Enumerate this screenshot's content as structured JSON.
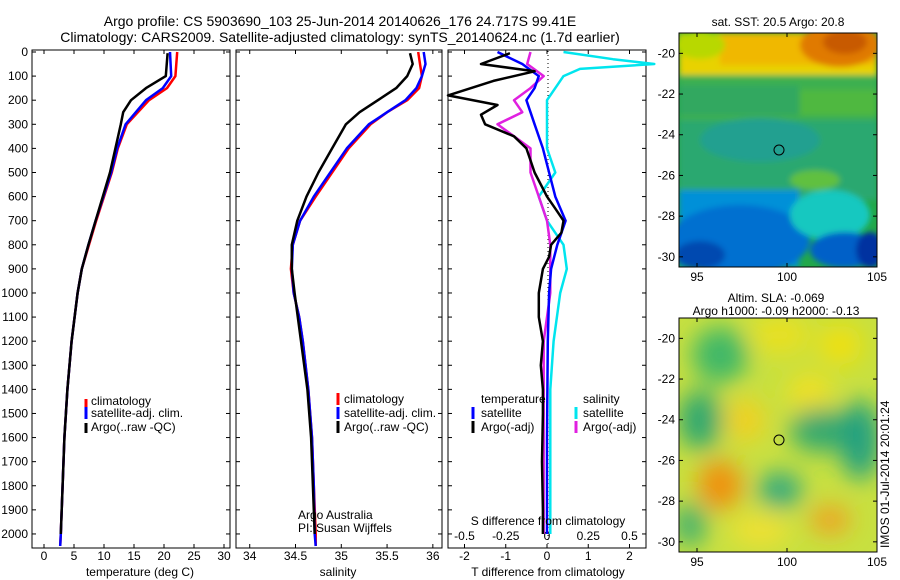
{
  "title": {
    "line1": "Argo profile: CS 5903690_103 25-Jun-2014 20140626_176 24.717S 99.41E",
    "line2": "Climatology: CARS2009. Satellite-adjusted climatology: synTS_20140624.nc (1.7d earlier)"
  },
  "depth_axis": {
    "ticks": [
      0,
      100,
      200,
      300,
      400,
      500,
      600,
      700,
      800,
      900,
      1000,
      1100,
      1200,
      1300,
      1400,
      1500,
      1600,
      1700,
      1800,
      1900,
      2000
    ],
    "range": [
      0,
      2050
    ]
  },
  "colors": {
    "climatology": "#ff0000",
    "satellite_adj": "#0000ff",
    "argo": "#000000",
    "salinity_sat": "#00e5ee",
    "salinity_argo": "#e020e0"
  },
  "chart_data": [
    {
      "type": "line",
      "id": "temperature",
      "xlabel": "temperature (deg C)",
      "xticks": [
        0,
        5,
        10,
        15,
        20,
        25,
        30
      ],
      "xlim": [
        -2,
        31
      ],
      "ylim": [
        0,
        2050
      ],
      "legend": {
        "items": [
          "climatology",
          "satellite-adj. clim.",
          "Argo(..raw -QC)"
        ],
        "placement": "lower-center"
      },
      "series": [
        {
          "name": "climatology",
          "color": "#ff0000",
          "depth": [
            0,
            100,
            150,
            200,
            300,
            400,
            500,
            600,
            700,
            800,
            900,
            1000,
            1200,
            1400,
            1600,
            1800,
            2000,
            2050
          ],
          "values": [
            22.2,
            21.9,
            20.5,
            17.5,
            13.8,
            12.3,
            11.3,
            10.0,
            8.7,
            7.5,
            6.3,
            5.6,
            4.6,
            3.9,
            3.4,
            3.1,
            2.8,
            2.7
          ]
        },
        {
          "name": "satellite-adj. clim.",
          "color": "#0000ff",
          "depth": [
            0,
            100,
            150,
            200,
            300,
            400,
            500,
            600,
            700,
            800,
            900,
            1000,
            1200,
            1400,
            1600,
            1800,
            2000,
            2050
          ],
          "values": [
            21.0,
            21.2,
            19.8,
            17.0,
            13.6,
            12.2,
            11.2,
            9.9,
            8.6,
            7.4,
            6.3,
            5.6,
            4.6,
            3.9,
            3.4,
            3.1,
            2.8,
            2.7
          ]
        },
        {
          "name": "Argo(..raw -QC)",
          "color": "#000000",
          "depth": [
            5,
            100,
            150,
            200,
            250,
            300,
            400,
            500,
            600,
            700,
            800,
            900,
            1000,
            1200,
            1400,
            1600,
            1800,
            2000
          ],
          "values": [
            20.6,
            20.3,
            17.0,
            14.5,
            13.2,
            12.8,
            11.9,
            11.0,
            9.8,
            8.6,
            7.4,
            6.3,
            5.6,
            4.6,
            3.9,
            3.4,
            3.1,
            2.8
          ]
        }
      ]
    },
    {
      "type": "line",
      "id": "salinity",
      "xlabel": "salinity",
      "xticks": [
        34,
        34.5,
        35,
        35.5,
        36
      ],
      "xlim": [
        33.85,
        36.1
      ],
      "ylim": [
        0,
        2050
      ],
      "legend": {
        "items": [
          "climatology",
          "satellite-adj. clim.",
          "Argo(..raw -QC)"
        ],
        "placement": "lower-center"
      },
      "annotation": [
        "Argo Australia",
        "PI: Susan Wijffels"
      ],
      "series": [
        {
          "name": "climatology",
          "color": "#ff0000",
          "depth": [
            0,
            50,
            100,
            150,
            200,
            250,
            300,
            400,
            500,
            600,
            700,
            800,
            900,
            1000,
            1100,
            1200,
            1400,
            1600,
            1800,
            2000,
            2050
          ],
          "values": [
            35.84,
            35.86,
            35.88,
            35.85,
            35.72,
            35.5,
            35.32,
            35.08,
            34.9,
            34.72,
            34.55,
            34.47,
            34.45,
            34.48,
            34.54,
            34.58,
            34.64,
            34.68,
            34.7,
            34.72,
            34.72
          ]
        },
        {
          "name": "satellite-adj. clim.",
          "color": "#0000ff",
          "depth": [
            0,
            50,
            100,
            150,
            200,
            250,
            300,
            400,
            500,
            600,
            700,
            800,
            900,
            1000,
            1100,
            1200,
            1400,
            1600,
            1800,
            2000,
            2050
          ],
          "values": [
            35.9,
            35.92,
            35.88,
            35.82,
            35.7,
            35.5,
            35.3,
            35.06,
            34.88,
            34.7,
            34.55,
            34.47,
            34.46,
            34.48,
            34.54,
            34.58,
            34.64,
            34.68,
            34.7,
            34.71,
            34.72
          ]
        },
        {
          "name": "Argo(..raw -QC)",
          "color": "#000000",
          "depth": [
            5,
            50,
            100,
            150,
            200,
            250,
            300,
            400,
            500,
            600,
            700,
            800,
            900,
            1000,
            1200,
            1400,
            1600,
            1800,
            2000
          ],
          "values": [
            35.75,
            35.78,
            35.72,
            35.6,
            35.4,
            35.2,
            35.05,
            34.9,
            34.75,
            34.62,
            34.52,
            34.46,
            34.46,
            34.49,
            34.56,
            34.63,
            34.67,
            34.69,
            34.71
          ]
        }
      ]
    },
    {
      "type": "line",
      "id": "difference",
      "xlabel": "T difference from climatology",
      "xlabel_top": "S difference from climatology",
      "xticks_bottom": [
        -2,
        -1,
        0,
        1,
        2
      ],
      "xticks_top": [
        "-0.5",
        "-0.25",
        "0",
        "0.25",
        "0.5"
      ],
      "xlim": [
        -2.4,
        2.4
      ],
      "ylim": [
        0,
        2050
      ],
      "legend": {
        "temperature_title": "temperature",
        "salinity_title": "salinity",
        "temperature_items": [
          "satellite",
          "Argo(-adj)"
        ],
        "salinity_items": [
          "satellite",
          "Argo(-adj)"
        ]
      },
      "series": [
        {
          "name": "temperature satellite",
          "color": "#0000ff",
          "depth": [
            0,
            50,
            100,
            150,
            200,
            250,
            300,
            400,
            500,
            600,
            700,
            800,
            900,
            1000,
            1200,
            1400,
            1600,
            1800,
            2000
          ],
          "values": [
            -1.2,
            -0.6,
            -0.2,
            -0.3,
            -0.5,
            -0.4,
            -0.3,
            -0.1,
            0.05,
            0.2,
            0.45,
            0.25,
            0.1,
            0.05,
            0.02,
            0.01,
            0.0,
            0.0,
            0.0
          ]
        },
        {
          "name": "temperature Argo(-adj)",
          "color": "#000000",
          "depth": [
            5,
            50,
            80,
            120,
            180,
            220,
            260,
            300,
            350,
            400,
            450,
            500,
            550,
            600,
            650,
            700,
            750,
            800,
            850,
            900,
            1000,
            1100,
            1200,
            1300,
            1400,
            1500,
            1700,
            1900,
            2000
          ],
          "values": [
            -0.9,
            -1.6,
            -0.3,
            -1.3,
            -2.4,
            -1.2,
            -1.6,
            -1.5,
            -0.8,
            -0.5,
            -0.4,
            -0.3,
            -0.15,
            0.0,
            0.2,
            0.4,
            0.35,
            0.1,
            0.05,
            -0.1,
            -0.2,
            -0.2,
            -0.1,
            -0.15,
            -0.1,
            -0.1,
            -0.12,
            -0.1,
            -0.1
          ]
        },
        {
          "name": "salinity satellite",
          "color": "#00e5ee",
          "depth": [
            0,
            30,
            50,
            70,
            100,
            150,
            200,
            300,
            400,
            500,
            600,
            700,
            800,
            900,
            1000,
            1200,
            1400,
            1600,
            1800,
            2000
          ],
          "values": [
            0.1,
            0.4,
            0.65,
            0.2,
            0.1,
            0.05,
            0.0,
            0.0,
            0.0,
            0.05,
            -0.05,
            0.0,
            0.1,
            0.12,
            0.08,
            0.04,
            0.02,
            0.02,
            0.02,
            0.02
          ]
        },
        {
          "name": "salinity Argo(-adj)",
          "color": "#e020e0",
          "depth": [
            0,
            50,
            100,
            150,
            200,
            250,
            300,
            350,
            400,
            500,
            600,
            700,
            800,
            900,
            1000,
            1200,
            1400,
            1600,
            1800,
            2000
          ],
          "values": [
            -0.1,
            -0.12,
            -0.02,
            -0.1,
            -0.2,
            -0.15,
            -0.3,
            -0.2,
            -0.1,
            -0.1,
            -0.05,
            0.0,
            0.02,
            0.02,
            0.02,
            -0.02,
            -0.02,
            -0.02,
            -0.02,
            -0.02
          ]
        }
      ]
    },
    {
      "type": "heatmap",
      "id": "sst_map",
      "title": "sat. SST: 20.5 Argo: 20.8",
      "xticks": [
        95,
        100,
        105
      ],
      "yticks": [
        -20,
        -22,
        -24,
        -26,
        -28,
        -30
      ],
      "xlim": [
        94,
        105
      ],
      "ylim": [
        -30.5,
        -19
      ],
      "marker": {
        "lon": 99.41,
        "lat": -24.717
      }
    },
    {
      "type": "heatmap",
      "id": "sla_map",
      "title_line1": "Altim. SLA: -0.069",
      "title_line2": "Argo h1000: -0.09 h2000: -0.13",
      "xticks": [
        95,
        100,
        105
      ],
      "yticks": [
        -20,
        -22,
        -24,
        -26,
        -28,
        -30
      ],
      "xlim": [
        94,
        105
      ],
      "ylim": [
        -30.5,
        -19
      ],
      "marker": {
        "lon": 99.41,
        "lat": -24.717
      }
    }
  ],
  "side_label": "IMOS 01-Jul-2014 20:01:24"
}
